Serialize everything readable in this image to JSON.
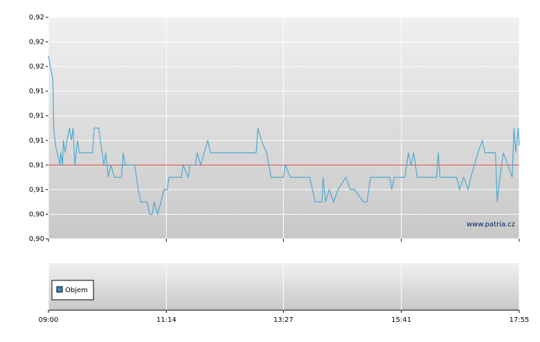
{
  "chart_data": {
    "type": "line",
    "watermark": "www.patria.cz",
    "legend_label": "Objem",
    "legend_color": "#3c8cc8",
    "reference_value": 0.9075,
    "reference_color": "#e04040",
    "xlim": [
      540,
      1075
    ],
    "xticks": [
      {
        "value": 540,
        "label": "09:00"
      },
      {
        "value": 674,
        "label": "11:14"
      },
      {
        "value": 807,
        "label": "13:27"
      },
      {
        "value": 941,
        "label": "15:41"
      },
      {
        "value": 1075,
        "label": "17:55"
      }
    ],
    "ylim": [
      0.9,
      0.9225
    ],
    "yticks": [
      {
        "value": 0.9,
        "label": "0,90"
      },
      {
        "value": 0.9025,
        "label": "0,90"
      },
      {
        "value": 0.905,
        "label": "0,91"
      },
      {
        "value": 0.9075,
        "label": "0,91"
      },
      {
        "value": 0.91,
        "label": "0,91"
      },
      {
        "value": 0.9125,
        "label": "0,91"
      },
      {
        "value": 0.915,
        "label": "0,91"
      },
      {
        "value": 0.9175,
        "label": "0,92"
      },
      {
        "value": 0.92,
        "label": "0,92"
      },
      {
        "value": 0.9225,
        "label": "0,92"
      }
    ],
    "grid": true,
    "series": [
      {
        "color": "#4aa8d0",
        "x": [
          540,
          542,
          545,
          546,
          548,
          550,
          553,
          554,
          556,
          557,
          559,
          561,
          564,
          566,
          568,
          570,
          573,
          575,
          590,
          592,
          597,
          601,
          603,
          605,
          608,
          611,
          615,
          623,
          625,
          627,
          638,
          642,
          645,
          652,
          655,
          658,
          660,
          664,
          668,
          671,
          675,
          677,
          691,
          693,
          699,
          701,
          707,
          709,
          713,
          717,
          721,
          724,
          729,
          776,
          778,
          782,
          788,
          793,
          807,
          809,
          815,
          837,
          843,
          851,
          852,
          855,
          859,
          864,
          869,
          878,
          883,
          888,
          898,
          902,
          906,
          928,
          930,
          933,
          945,
          949,
          952,
          955,
          959,
          981,
          983,
          985,
          1004,
          1007,
          1012,
          1017,
          1020,
          1028,
          1033,
          1036,
          1048,
          1050,
          1053,
          1057,
          1067,
          1069,
          1071,
          1074,
          1075
        ],
        "values": [
          0.9186,
          0.9176,
          0.9162,
          0.91125,
          0.9095,
          0.90875,
          0.9075,
          0.90875,
          0.9075,
          0.91,
          0.90875,
          0.91,
          0.91125,
          0.91,
          0.91125,
          0.9075,
          0.91,
          0.90875,
          0.90875,
          0.91125,
          0.91125,
          0.90875,
          0.9075,
          0.90875,
          0.90625,
          0.9075,
          0.90625,
          0.90625,
          0.90875,
          0.9075,
          0.9075,
          0.905,
          0.90375,
          0.90375,
          0.9025,
          0.9025,
          0.90375,
          0.9025,
          0.90375,
          0.905,
          0.905,
          0.90625,
          0.90625,
          0.9075,
          0.90625,
          0.9075,
          0.9075,
          0.90875,
          0.9075,
          0.90875,
          0.91,
          0.90875,
          0.90875,
          0.90875,
          0.91125,
          0.91,
          0.90875,
          0.90625,
          0.90625,
          0.9075,
          0.90625,
          0.90625,
          0.90375,
          0.90375,
          0.90625,
          0.90375,
          0.905,
          0.90375,
          0.905,
          0.90625,
          0.905,
          0.905,
          0.90375,
          0.90375,
          0.90625,
          0.90625,
          0.905,
          0.90625,
          0.90625,
          0.90875,
          0.9075,
          0.90875,
          0.90625,
          0.90625,
          0.90875,
          0.90625,
          0.90625,
          0.905,
          0.90625,
          0.905,
          0.90625,
          0.90875,
          0.91,
          0.90875,
          0.90875,
          0.90375,
          0.90625,
          0.90875,
          0.90625,
          0.91125,
          0.90875,
          0.91125,
          0.9095
        ]
      }
    ]
  }
}
